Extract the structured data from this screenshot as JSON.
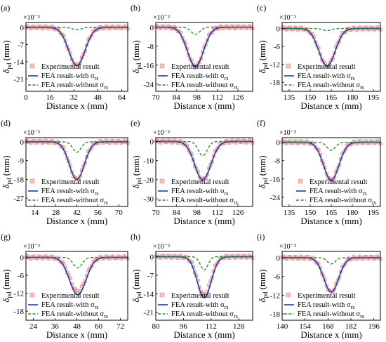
{
  "colors": {
    "experimental": "#e38f99",
    "with": "#1f3f9a",
    "without": "#2e8b2e"
  },
  "legend_labels": {
    "experimental": "Experimental result",
    "with_prefix": "FEA result-with σ",
    "without_prefix": "FEA result-without σ",
    "subscript": "rs"
  },
  "xlabel": "Distance x (mm)",
  "ylabel": "δ",
  "ylabel_sub": "pd",
  "ylabel_unit": "(mm)",
  "chart_data": [
    {
      "id": "a",
      "panel_label": "(a)",
      "type": "line",
      "exponent": "×10⁻³",
      "xticks": [
        0,
        16,
        32,
        48,
        64
      ],
      "yticks": [
        0,
        -7,
        -14,
        -21
      ],
      "xlim": [
        0,
        68
      ],
      "ylim": [
        -26,
        2
      ],
      "center": 34,
      "width": 5.5,
      "depth_with": -15.5,
      "depth_without": -1.0,
      "depth_exp": -15.5,
      "legend": "bottom-left"
    },
    {
      "id": "b",
      "panel_label": "(b)",
      "type": "line",
      "exponent": "×10⁻³",
      "xticks": [
        70,
        84,
        98,
        112,
        126
      ],
      "yticks": [
        0,
        -8,
        -16,
        -24
      ],
      "xlim": [
        70,
        136
      ],
      "ylim": [
        -27,
        2
      ],
      "center": 97,
      "width": 5.5,
      "depth_with": -16.5,
      "depth_without": -3.0,
      "depth_exp": -16.5,
      "legend": "bottom-left"
    },
    {
      "id": "c",
      "panel_label": "(c)",
      "type": "line",
      "exponent": "×10⁻³",
      "xticks": [
        135,
        150,
        165,
        180,
        195
      ],
      "yticks": [
        0,
        -6,
        -12,
        -18
      ],
      "xlim": [
        130,
        200
      ],
      "ylim": [
        -21,
        2
      ],
      "center": 162,
      "width": 5.8,
      "depth_with": -12.5,
      "depth_without": -0.7,
      "depth_exp": -12.5,
      "legend": "bottom-left"
    },
    {
      "id": "d",
      "panel_label": "(d)",
      "type": "line",
      "exponent": "×10⁻³",
      "xticks": [
        14,
        28,
        42,
        56,
        70
      ],
      "yticks": [
        0,
        -9,
        -18,
        -27
      ],
      "xlim": [
        8,
        76
      ],
      "ylim": [
        -31,
        2
      ],
      "center": 42,
      "width": 5.0,
      "depth_with": -18.0,
      "depth_without": -5.0,
      "depth_exp": -18.0,
      "legend": "bottom-left"
    },
    {
      "id": "e",
      "panel_label": "(e)",
      "type": "line",
      "exponent": "×10⁻³",
      "xticks": [
        70,
        84,
        98,
        112,
        126
      ],
      "yticks": [
        0,
        -10,
        -20,
        -30
      ],
      "xlim": [
        70,
        136
      ],
      "ylim": [
        -34,
        2
      ],
      "center": 102,
      "width": 5.5,
      "depth_with": -20.0,
      "depth_without": -7.5,
      "depth_exp": -20.0,
      "legend": "bottom-left"
    },
    {
      "id": "f",
      "panel_label": "(f)",
      "type": "line",
      "exponent": "×10⁻³",
      "xticks": [
        135,
        150,
        165,
        180,
        195
      ],
      "yticks": [
        0,
        -8,
        -16,
        -24
      ],
      "xlim": [
        130,
        200
      ],
      "ylim": [
        -28,
        2
      ],
      "center": 165,
      "width": 5.5,
      "depth_with": -16.5,
      "depth_without": -3.5,
      "depth_exp": -16.5,
      "legend": "bottom-right"
    },
    {
      "id": "g",
      "panel_label": "(g)",
      "type": "line",
      "exponent": "×10⁻³",
      "xticks": [
        24,
        36,
        48,
        60,
        72
      ],
      "yticks": [
        0,
        -6,
        -12,
        -18
      ],
      "xlim": [
        20,
        76
      ],
      "ylim": [
        -21,
        2
      ],
      "center": 48.5,
      "width": 4.5,
      "depth_with": -12.5,
      "depth_without": -3.5,
      "depth_exp": -11.5,
      "legend": "bottom-left"
    },
    {
      "id": "h",
      "panel_label": "(h)",
      "type": "line",
      "exponent": "×10⁻⁵",
      "xticks": [
        80,
        96,
        112,
        128
      ],
      "yticks": [
        0,
        -7,
        -14,
        -21
      ],
      "xlim": [
        80,
        136
      ],
      "ylim": [
        -24,
        2
      ],
      "center": 108,
      "width": 4.0,
      "depth_with": -15.5,
      "depth_without": -5.0,
      "depth_exp": -14.5,
      "legend": "bottom-left"
    },
    {
      "id": "i",
      "panel_label": "(i)",
      "type": "line",
      "exponent": "×10⁻³",
      "xticks": [
        140,
        154,
        168,
        182,
        196
      ],
      "yticks": [
        0,
        -6,
        -12,
        -18
      ],
      "xlim": [
        140,
        200
      ],
      "ylim": [
        -20,
        2
      ],
      "center": 170,
      "width": 4.5,
      "depth_with": -11.0,
      "depth_without": -2.0,
      "depth_exp": -11.0,
      "legend": "bottom-left"
    }
  ]
}
